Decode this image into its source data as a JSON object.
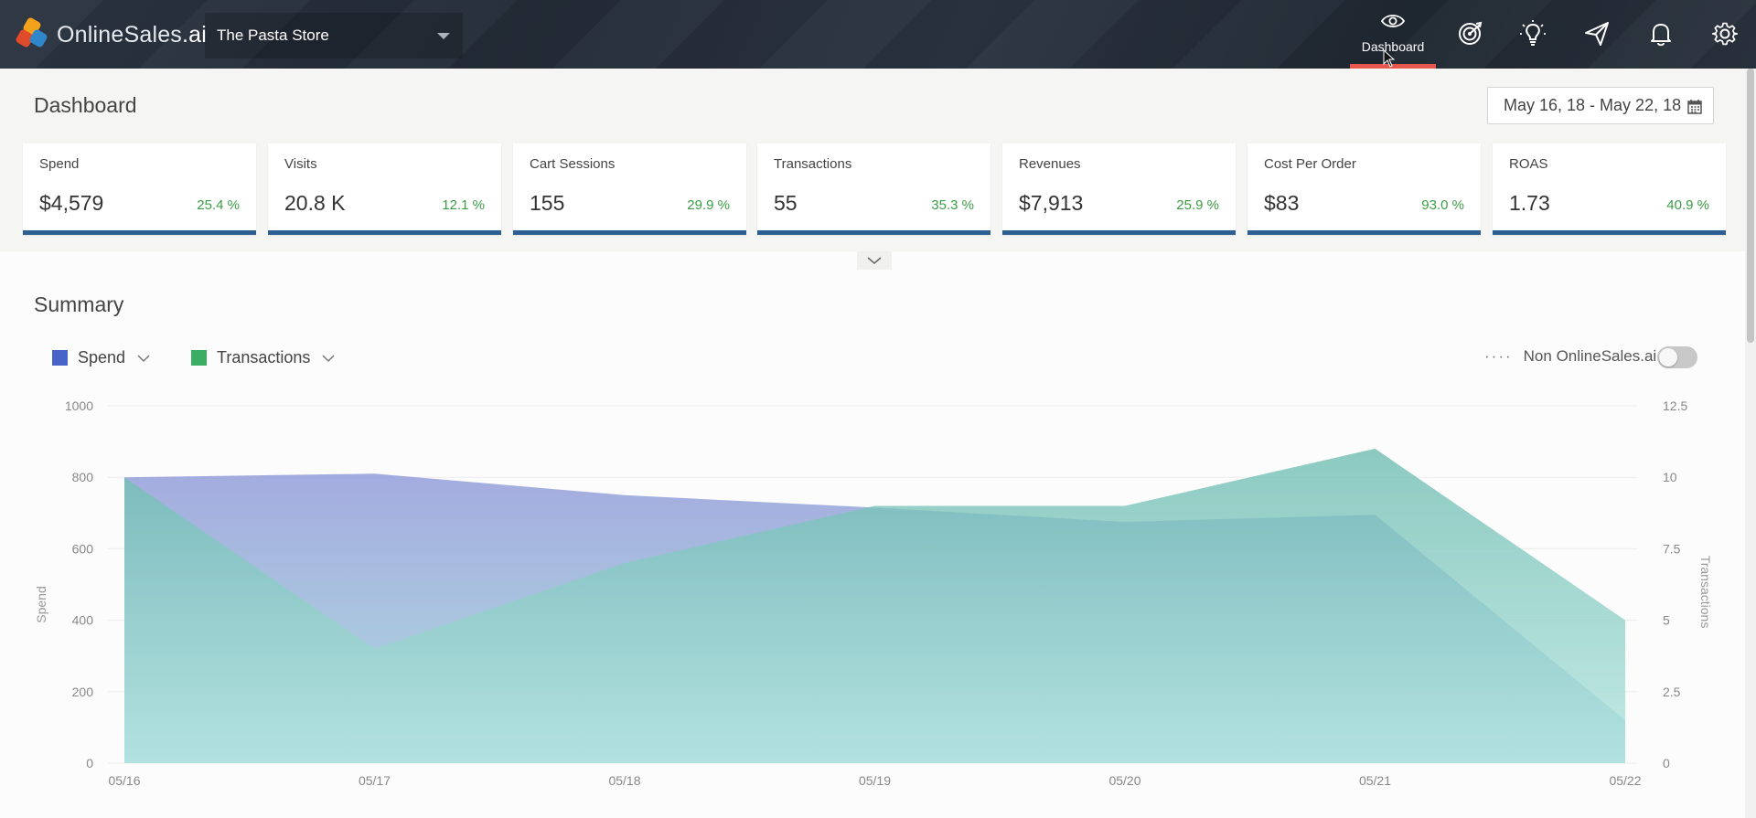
{
  "topbar": {
    "logo_main": "OnlineSales",
    "logo_suffix": ".ai",
    "store": "The Pasta Store",
    "nav": {
      "dashboard_label": "Dashboard"
    }
  },
  "dashboard": {
    "title": "Dashboard",
    "date_range": "May 16, 18 - May 22, 18"
  },
  "kpis": [
    {
      "label": "Spend",
      "value": "$4,579",
      "change": "25.4 %"
    },
    {
      "label": "Visits",
      "value": "20.8 K",
      "change": "12.1 %"
    },
    {
      "label": "Cart Sessions",
      "value": "155",
      "change": "29.9 %"
    },
    {
      "label": "Transactions",
      "value": "55",
      "change": "35.3 %"
    },
    {
      "label": "Revenues",
      "value": "$7,913",
      "change": "25.9 %"
    },
    {
      "label": "Cost Per Order",
      "value": "$83",
      "change": "93.0 %"
    },
    {
      "label": "ROAS",
      "value": "1.73",
      "change": "40.9 %"
    }
  ],
  "summary": {
    "title": "Summary",
    "legend": [
      {
        "name": "Spend",
        "color": "#4a63c9"
      },
      {
        "name": "Transactions",
        "color": "#3cae64"
      }
    ],
    "non_onlinesales_label": "Non OnlineSales.ai",
    "non_onlinesales_enabled": false
  },
  "colors": {
    "accent": "#2c5e94",
    "positive": "#3a9d44",
    "active_nav": "#e8574d"
  },
  "chart_data": {
    "type": "area",
    "categories": [
      "05/16",
      "05/17",
      "05/18",
      "05/19",
      "05/20",
      "05/21",
      "05/22"
    ],
    "series": [
      {
        "name": "Spend",
        "axis": "left",
        "values": [
          800,
          810,
          750,
          715,
          675,
          695,
          120
        ]
      },
      {
        "name": "Transactions",
        "axis": "right",
        "values": [
          10,
          4,
          7,
          9,
          9,
          11,
          5
        ]
      }
    ],
    "ylabel": "Spend",
    "y2label": "Transactions",
    "ylim": [
      0,
      1000
    ],
    "y2lim": [
      0,
      12.5
    ],
    "yticks": [
      "0",
      "200",
      "400",
      "600",
      "800",
      "1000"
    ],
    "y2ticks": [
      "0",
      "2.5",
      "5",
      "7.5",
      "10",
      "12.5"
    ],
    "grid": true
  }
}
